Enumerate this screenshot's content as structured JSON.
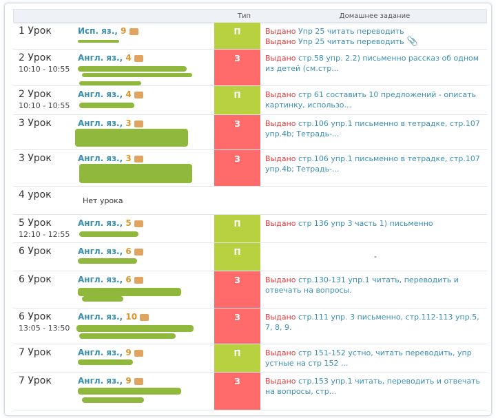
{
  "header": {
    "type_col": "Тип",
    "homework_col": "Домашнее задание"
  },
  "rows": [
    {
      "lesson": "1 Урок",
      "time": "",
      "subject": "Исп. яз.",
      "grade": "9",
      "type": "П",
      "hw": [
        {
          "status": "Выдано",
          "text": " Упр 25 читать переводить"
        },
        {
          "status": "Выдано",
          "text": " Упр 25 читать переводить"
        }
      ]
    },
    {
      "lesson": "2 Урок",
      "time": "10:10 - 10:55",
      "subject": "Англ. яз.",
      "grade": "4",
      "type": "З",
      "hw": [
        {
          "status": "Выдано",
          "text": " стр.58 упр. 2.2) письменно рассказ об одном из детей (см.стр..."
        }
      ]
    },
    {
      "lesson": "2 Урок",
      "time": "10:10 - 10:55",
      "subject": "Англ. яз.",
      "grade": "4",
      "type": "П",
      "hw": [
        {
          "status": "Выдано",
          "text": " стр 61 составить 10 предложений - описать картинку, использо..."
        }
      ]
    },
    {
      "lesson": "3 Урок",
      "time": "",
      "subject": "Англ. яз.",
      "grade": "3",
      "type": "З",
      "hw": [
        {
          "status": "Выдано",
          "text": " стр.106 упр.1 письменно в тетрадке, стр.107 упр.4b; Тетрадь-..."
        }
      ]
    },
    {
      "lesson": "3 Урок",
      "time": "",
      "subject": "Англ. яз.",
      "grade": "3",
      "type": "З",
      "hw": [
        {
          "status": "Выдано",
          "text": " стр.106 упр.1 письменно в тетрадке, стр.107 упр.4b; Тетрадь-..."
        }
      ]
    },
    {
      "lesson": "4 урок",
      "time": "",
      "no_lesson": "Нет урока"
    },
    {
      "lesson": "5 Урок",
      "time": "12:10 - 12:55",
      "subject": "Англ. яз.",
      "grade": "5",
      "type": "П",
      "hw": [
        {
          "status": "Выдано",
          "text": " стр 136 упр 3 часть 1) письменно"
        }
      ]
    },
    {
      "lesson": "6 Урок",
      "time": "",
      "subject": "Англ. яз.",
      "grade": "6",
      "type": "П",
      "hw": [
        {
          "status": "",
          "text": "-"
        }
      ]
    },
    {
      "lesson": "6 Урок",
      "time": "",
      "subject": "Англ. яз.",
      "grade": "6",
      "type": "З",
      "hw": [
        {
          "status": "Выдано",
          "text": " стр.130-131 упр.1 читать, переводить и отвечать на вопросы."
        }
      ]
    },
    {
      "lesson": "6 Урок",
      "time": "13:05 - 13:50",
      "subject": "Англ. яз.",
      "grade": "10",
      "type": "З",
      "hw": [
        {
          "status": "Выдано",
          "text": " стр.111 упр. 3 письменно, стр.112-113 упр.5, 7, 8, 9."
        }
      ]
    },
    {
      "lesson": "7 Урок",
      "time": "",
      "subject": "Англ. яз.",
      "grade": "9",
      "type": "П",
      "hw": [
        {
          "status": "Выдано",
          "text": " стр 151-152 устно, читать переводить, упр устные на стр 152 ..."
        }
      ]
    },
    {
      "lesson": "7 Урок",
      "time": "",
      "subject": "Англ. яз.",
      "grade": "9",
      "type": "З",
      "hw": [
        {
          "status": "Выдано",
          "text": " стр.153 упр.1 читать, переводить и отвечать на вопросы, стр..."
        }
      ]
    }
  ],
  "colors": {
    "type_p": "#b7d140",
    "type_z": "#ff6b6b",
    "subject": "#3a8fb0",
    "grade": "#e0932a",
    "issued": "#e23a3a"
  }
}
